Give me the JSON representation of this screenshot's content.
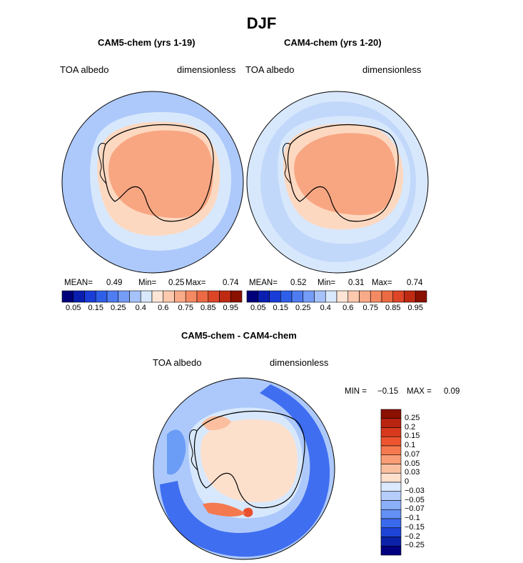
{
  "figure": {
    "season": "DJF",
    "variable": "TOA albedo",
    "units": "dimensionless"
  },
  "colors": {
    "ice": "#f8a682",
    "ice_light": "#fdd8c0",
    "ocean_light": "#d8e8fc",
    "ocean_mid": "#adc9fb",
    "blue_mid": "#6b9cf6",
    "blue_dark": "#3f6ef0",
    "red": "#e8502e"
  },
  "panels": {
    "left": {
      "title": "CAM5-chem (yrs 1-19)",
      "var_label": "TOA albedo",
      "units_label": "dimensionless",
      "mean_label": "MEAN=",
      "mean": "0.49",
      "min_label": "Min=",
      "min": "0.25",
      "max_label": "Max=",
      "max": "0.74"
    },
    "right": {
      "title": "CAM4-chem (yrs 1-20)",
      "var_label": "TOA albedo",
      "units_label": "dimensionless",
      "mean_label": "MEAN=",
      "mean": "0.52",
      "min_label": "Min=",
      "min": "0.31",
      "max_label": "Max=",
      "max": "0.74"
    },
    "diff": {
      "title": "CAM5-chem - CAM4-chem",
      "var_label": "TOA albedo",
      "units_label": "dimensionless",
      "min_label": "MIN =",
      "min": "−0.15",
      "max_label": "MAX =",
      "max": "0.09"
    }
  },
  "chart_data": [
    {
      "type": "heatmap",
      "title": "CAM5-chem (yrs 1-19)",
      "projection": "south polar stereographic",
      "variable": "TOA albedo",
      "units": "dimensionless",
      "mean": 0.49,
      "min": 0.25,
      "max": 0.74,
      "colorbar_levels": [
        0.05,
        0.1,
        0.15,
        0.2,
        0.25,
        0.3,
        0.4,
        0.5,
        0.6,
        0.7,
        0.75,
        0.8,
        0.85,
        0.9,
        0.95
      ],
      "colorbar_tick_labels": [
        "0.05",
        "0.15",
        "0.25",
        "0.4",
        "0.6",
        "0.75",
        "0.85",
        "0.95"
      ],
      "colorbar_colors": [
        "#00007a",
        "#0a1fb0",
        "#1a3dd8",
        "#2f5fe8",
        "#4f7cf0",
        "#759cf6",
        "#a6c2fa",
        "#d9e8fc",
        "#fde4d4",
        "#fcc8ae",
        "#f9aa88",
        "#f48a63",
        "#ec6a43",
        "#dd4527",
        "#bf2a12",
        "#8a1000"
      ]
    },
    {
      "type": "heatmap",
      "title": "CAM4-chem (yrs 1-20)",
      "projection": "south polar stereographic",
      "variable": "TOA albedo",
      "units": "dimensionless",
      "mean": 0.52,
      "min": 0.31,
      "max": 0.74,
      "colorbar_levels": [
        0.05,
        0.1,
        0.15,
        0.2,
        0.25,
        0.3,
        0.4,
        0.5,
        0.6,
        0.7,
        0.75,
        0.8,
        0.85,
        0.9,
        0.95
      ],
      "colorbar_tick_labels": [
        "0.05",
        "0.15",
        "0.25",
        "0.4",
        "0.6",
        "0.75",
        "0.85",
        "0.95"
      ],
      "colorbar_colors": [
        "#00007a",
        "#0a1fb0",
        "#1a3dd8",
        "#2f5fe8",
        "#4f7cf0",
        "#759cf6",
        "#a6c2fa",
        "#d9e8fc",
        "#fde4d4",
        "#fcc8ae",
        "#f9aa88",
        "#f48a63",
        "#ec6a43",
        "#dd4527",
        "#bf2a12",
        "#8a1000"
      ]
    },
    {
      "type": "heatmap",
      "title": "CAM5-chem - CAM4-chem",
      "projection": "south polar stereographic",
      "variable": "TOA albedo",
      "units": "dimensionless",
      "min": -0.15,
      "max": 0.09,
      "colorbar_tick_labels": [
        "0.25",
        "0.2",
        "0.15",
        "0.1",
        "0.07",
        "0.05",
        "0.03",
        "0",
        "−0.03",
        "−0.05",
        "−0.07",
        "−0.1",
        "−0.15",
        "−0.2",
        "−0.25"
      ],
      "colorbar_colors": [
        "#8a1000",
        "#b82410",
        "#d8391c",
        "#ec5530",
        "#f5794f",
        "#f89d76",
        "#fbbf9f",
        "#fde0cc",
        "#dbe9fc",
        "#b4cdfb",
        "#8cb0f8",
        "#6390f3",
        "#3a6aec",
        "#1d44d6",
        "#0b22a8",
        "#000080"
      ]
    }
  ]
}
